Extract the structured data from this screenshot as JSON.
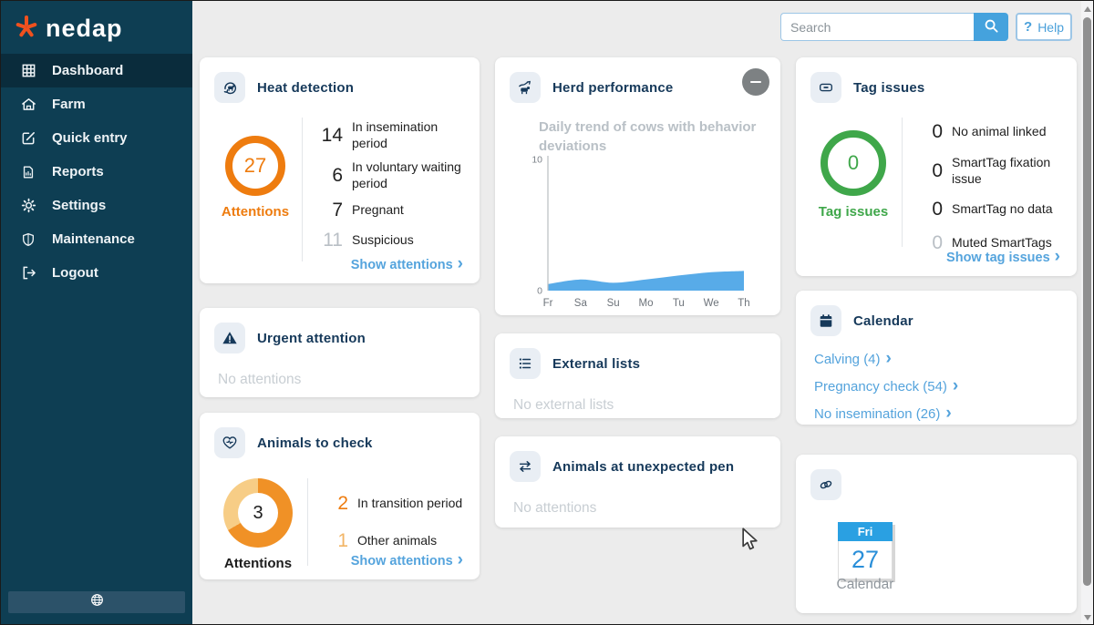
{
  "app_title": "nedap",
  "topbar": {
    "search_placeholder": "Search",
    "search_icon": "search-icon",
    "help_q": "?",
    "help_label": "Help"
  },
  "sidebar": {
    "items": [
      {
        "label": "Dashboard",
        "icon": "grid-icon",
        "active": true
      },
      {
        "label": "Farm",
        "icon": "farm-icon",
        "active": false
      },
      {
        "label": "Quick entry",
        "icon": "edit-icon",
        "active": false
      },
      {
        "label": "Reports",
        "icon": "report-icon",
        "active": false
      },
      {
        "label": "Settings",
        "icon": "gear-icon",
        "active": false
      },
      {
        "label": "Maintenance",
        "icon": "shield-icon",
        "active": false
      },
      {
        "label": "Logout",
        "icon": "logout-icon",
        "active": false
      }
    ],
    "language_icon": "globe-icon"
  },
  "cards": {
    "heat_detection": {
      "title": "Heat detection",
      "icon": "cow-heat-icon",
      "ring": {
        "value": "27",
        "label": "Attentions",
        "color": "#ee7c0f"
      },
      "stats": [
        {
          "value": "14",
          "label": "In insemination period",
          "value_color": "#222222"
        },
        {
          "value": "6",
          "label": "In voluntary waiting period",
          "value_color": "#222222"
        },
        {
          "value": "7",
          "label": "Pregnant",
          "value_color": "#222222"
        },
        {
          "value": "11",
          "label": "Suspicious",
          "value_color": "#b9bfc5"
        }
      ],
      "link": "Show attentions"
    },
    "urgent_attention": {
      "title": "Urgent attention",
      "icon": "warning-icon",
      "empty": "No attentions"
    },
    "animals_to_check": {
      "title": "Animals to check",
      "icon": "heart-icon",
      "donut": {
        "value": "3",
        "label": "Attentions",
        "segments": [
          {
            "value": 2,
            "color": "#f09126"
          },
          {
            "value": 1,
            "color": "#f7cd86"
          }
        ]
      },
      "stats": [
        {
          "value": "2",
          "label": "In transition period",
          "value_color": "#ee7c0f"
        },
        {
          "value": "1",
          "label": "Other animals",
          "value_color": "#f2b566"
        }
      ],
      "link": "Show attentions"
    },
    "herd_performance": {
      "title": "Herd performance",
      "icon": "herd-icon",
      "subtitle": "Daily trend of cows with behavior deviations"
    },
    "external_lists": {
      "title": "External lists",
      "icon": "list-icon",
      "empty": "No external lists"
    },
    "unexpected_pen": {
      "title": "Animals at unexpected pen",
      "icon": "swap-icon",
      "empty": "No attentions"
    },
    "tag_issues": {
      "title": "Tag issues",
      "icon": "tag-icon",
      "ring": {
        "value": "0",
        "label": "Tag issues",
        "color": "#3fa74a"
      },
      "stats": [
        {
          "value": "0",
          "label": "No animal linked",
          "value_color": "#222222"
        },
        {
          "value": "0",
          "label": "SmartTag fixation issue",
          "value_color": "#222222"
        },
        {
          "value": "0",
          "label": "SmartTag no data",
          "value_color": "#222222"
        },
        {
          "value": "0",
          "label": "Muted SmartTags",
          "value_color": "#b9bfc5"
        }
      ],
      "link": "Show tag issues"
    },
    "calendar": {
      "title": "Calendar",
      "icon": "calendar-icon",
      "links": [
        "Calving (4)",
        "Pregnancy check (54)",
        "No insemination (26)"
      ]
    },
    "shortcut": {
      "icon": "link-icon",
      "day_name": "Fri",
      "day_number": "27",
      "label": "Calendar"
    }
  },
  "chart_data": {
    "type": "area",
    "title": "Daily trend of cows with behavior deviations",
    "x": [
      "Fr",
      "Sa",
      "Su",
      "Mo",
      "Tu",
      "We",
      "Th"
    ],
    "values": [
      0.5,
      0.85,
      0.6,
      0.85,
      1.15,
      1.4,
      1.5
    ],
    "xlabel": "",
    "ylabel": "",
    "ylim": [
      0,
      10
    ],
    "yticks": [
      0,
      10
    ],
    "area_color": "#58abe8",
    "grid": false,
    "legend": false
  },
  "colors": {
    "accent_orange": "#ee7c0f",
    "accent_orange_light": "#f7cd86",
    "accent_green": "#3fa74a",
    "link_blue": "#54a3dc",
    "sidebar_bg": "#0e3e53",
    "sidebar_active_bg": "#0a2c3c",
    "title_navy": "#16395a",
    "muted_gray": "#c8ced3"
  }
}
